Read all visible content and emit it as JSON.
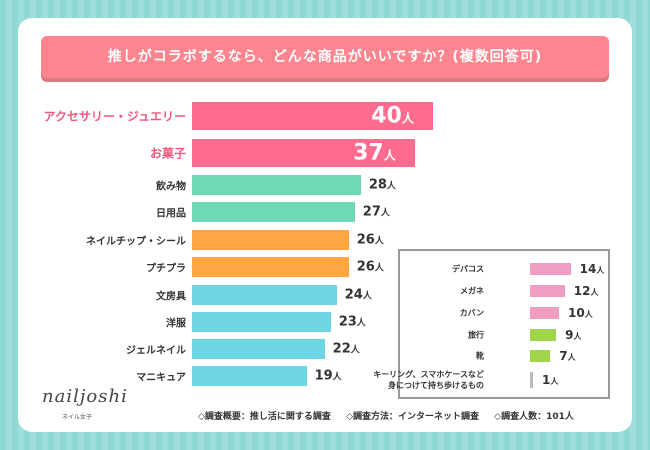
{
  "title": "推しがコラボするなら、どんな商品がいいですか？(複数回答可)",
  "chart_data": [
    {
      "type": "bar",
      "orientation": "horizontal",
      "unit": "人",
      "categories": [
        "アクセサリー・ジュエリー",
        "お菓子",
        "飲み物",
        "日用品",
        "ネイルチップ・シール",
        "プチプラ",
        "文房具",
        "洋服",
        "ジェルネイル",
        "マニキュア"
      ],
      "values": [
        40,
        37,
        28,
        27,
        26,
        26,
        24,
        23,
        22,
        19
      ],
      "colors": [
        "#ff6b8f",
        "#ff6b8f",
        "#6fd9b4",
        "#6fd9b4",
        "#ffa642",
        "#ffa642",
        "#6ed6e3",
        "#6ed6e3",
        "#6ed6e3",
        "#6ed6e3"
      ]
    },
    {
      "type": "bar",
      "orientation": "horizontal",
      "unit": "人",
      "categories": [
        "デパコス",
        "メガネ",
        "カバン",
        "旅行",
        "靴",
        "キーリング、スマホケースなど\n身につけて持ち歩けるもの"
      ],
      "values": [
        14,
        12,
        10,
        9,
        7,
        1
      ],
      "colors": [
        "#ef9ec2",
        "#ef9ec2",
        "#ef9ec2",
        "#9fd44c",
        "#9fd44c",
        "#bbbbbb"
      ]
    }
  ],
  "logo": {
    "text": "nailjoshi",
    "sub": "ネイル女子"
  },
  "footer": [
    "◇調査概要：推し活に関する調査",
    "◇調査方法：インターネット調査",
    "◇調査人数：101人"
  ]
}
